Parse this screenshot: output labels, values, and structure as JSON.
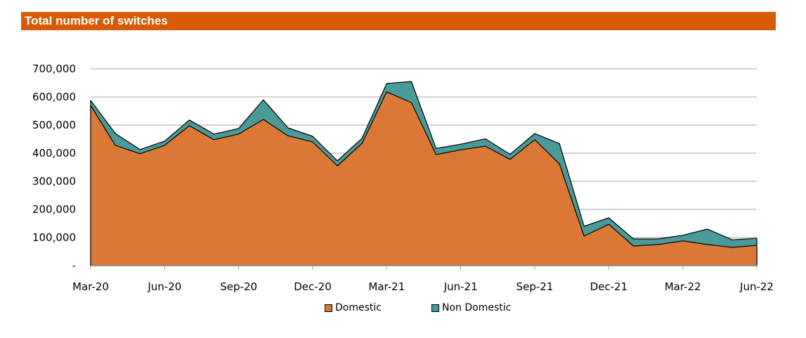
{
  "chart_data": {
    "type": "area",
    "title": "Total number of switches",
    "x_tick_labels": [
      "Mar-20",
      "Jun-20",
      "Sep-20",
      "Dec-20",
      "Mar-21",
      "Jun-21",
      "Sep-21",
      "Dec-21",
      "Mar-22",
      "Jun-22"
    ],
    "y_tick_labels": [
      "-",
      "100,000",
      "200,000",
      "300,000",
      "400,000",
      "500,000",
      "600,000",
      "700,000"
    ],
    "ylim": [
      0,
      700000
    ],
    "grid": true,
    "legend_position": "bottom",
    "stacked": true,
    "categories": [
      "Mar-20",
      "Apr-20",
      "May-20",
      "Jun-20",
      "Jul-20",
      "Aug-20",
      "Sep-20",
      "Oct-20",
      "Nov-20",
      "Dec-20",
      "Jan-21",
      "Feb-21",
      "Mar-21",
      "Apr-21",
      "May-21",
      "Jun-21",
      "Jul-21",
      "Aug-21",
      "Sep-21",
      "Oct-21",
      "Nov-21",
      "Dec-21",
      "Jan-22",
      "Feb-22",
      "Mar-22",
      "Apr-22",
      "May-22",
      "Jun-22"
    ],
    "series": [
      {
        "name": "Domestic",
        "color": "#dc7835",
        "values": [
          570000,
          428000,
          398000,
          428000,
          498000,
          448000,
          468000,
          520000,
          462000,
          440000,
          355000,
          435000,
          618000,
          580000,
          395000,
          412000,
          425000,
          378000,
          448000,
          362000,
          105000,
          147000,
          70000,
          75000,
          88000,
          75000,
          65000,
          72000
        ]
      },
      {
        "name": "Non Domestic",
        "color": "#4a9a9a",
        "values": [
          18000,
          42000,
          15000,
          15000,
          20000,
          20000,
          20000,
          70000,
          28000,
          20000,
          18000,
          18000,
          30000,
          75000,
          22000,
          20000,
          26000,
          18000,
          22000,
          72000,
          35000,
          23000,
          25000,
          20000,
          20000,
          55000,
          27000,
          25000
        ]
      }
    ]
  }
}
